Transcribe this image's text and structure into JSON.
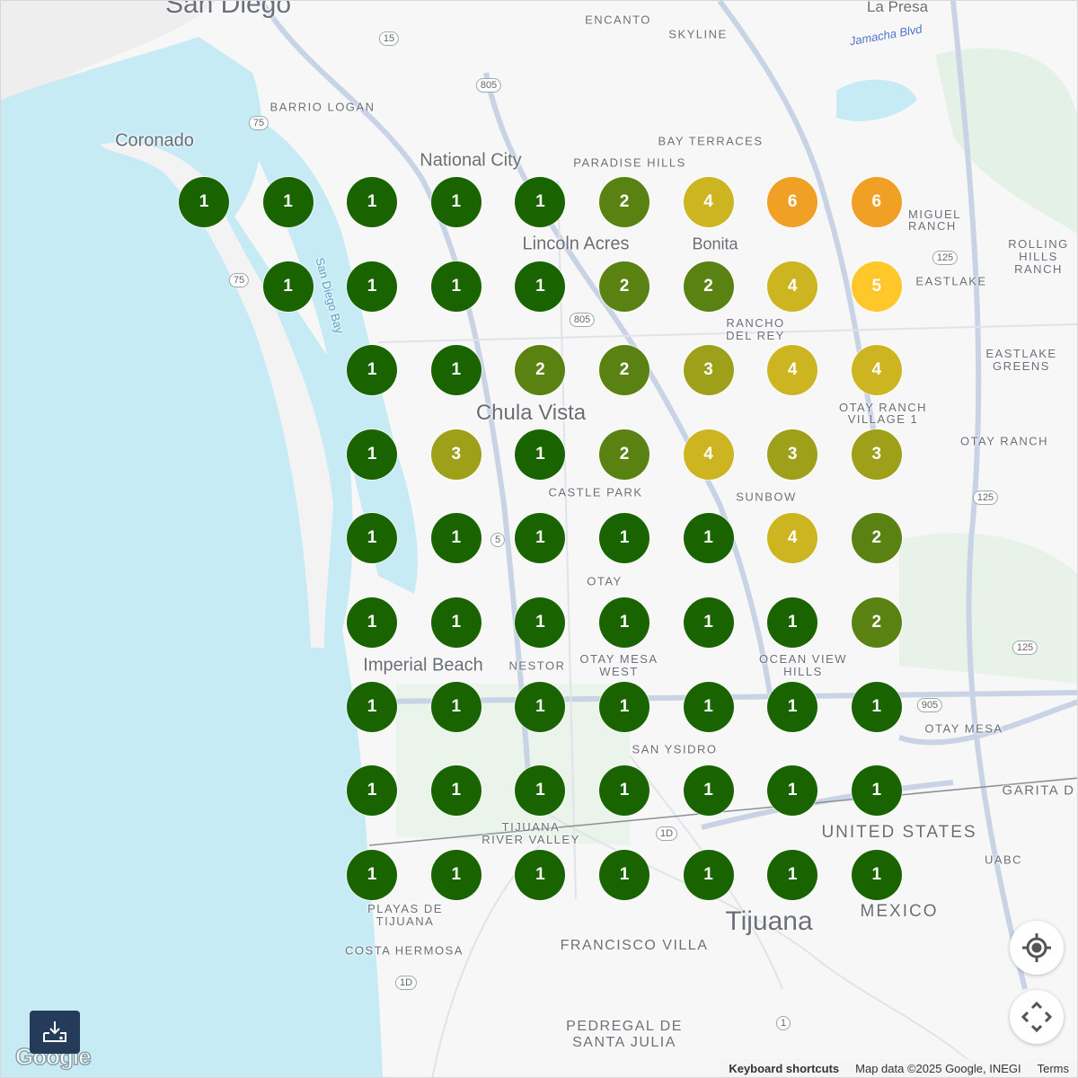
{
  "map": {
    "labels": {
      "san_diego": "San Diego",
      "la_presa": "La Presa",
      "encanto": "ENCANTO",
      "skyline": "SKYLINE",
      "jamacha_blvd": "Jamacha Blvd",
      "barrio_logan": "BARRIO LOGAN",
      "coronado": "Coronado",
      "bay_terraces": "BAY TERRACES",
      "national_city": "National City",
      "paradise_hills": "PARADISE HILLS",
      "lincoln_acres": "Lincoln Acres",
      "miguel_ranch": "MIGUEL RANCH",
      "rolling_hills": "ROLLING HILLS RANCH",
      "eastlake": "EASTLAKE",
      "bonita": "Bonita",
      "rancho_del_rey": "RANCHO DEL REY",
      "san_diego_bay": "San Diego Bay",
      "chula_vista": "Chula Vista",
      "eastlake_greens": "EASTLAKE GREENS",
      "otay_ranch_village": "OTAY RANCH VILLAGE 1",
      "otay_ranch": "OTAY RANCH",
      "castle_park": "CASTLE PARK",
      "sunbow": "SUNBOW",
      "otay": "OTAY",
      "imperial_beach": "Imperial Beach",
      "otay_mesa_west": "OTAY MESA WEST",
      "ocean_view_hills": "OCEAN VIEW HILLS",
      "nestor": "NESTOR",
      "otay_mesa": "OTAY MESA",
      "san_ysidro": "SAN YSIDRO",
      "tijuana_river_valley": "TIJUANA RIVER VALLEY",
      "united_states": "UNITED STATES",
      "mexico": "MEXICO",
      "garita": "GARITA D",
      "uabc": "UABC",
      "tijuana": "Tijuana",
      "playas": "PLAYAS DE TIJUANA",
      "costa_hermosa": "COSTA HERMOSA",
      "francisco_villa": "FRANCISCO VILLA",
      "pedregal": "PEDREGAL DE SANTA JULIA"
    },
    "shields": [
      "15",
      "805",
      "75",
      "75",
      "805",
      "125",
      "125",
      "125",
      "905",
      "5",
      "1D",
      "1D",
      "1"
    ]
  },
  "grid": {
    "rows": [
      [
        1,
        1,
        1,
        1,
        1,
        2,
        4,
        6,
        6
      ],
      [
        null,
        1,
        1,
        1,
        1,
        2,
        2,
        4,
        5
      ],
      [
        null,
        null,
        1,
        1,
        2,
        2,
        3,
        4,
        4
      ],
      [
        null,
        null,
        1,
        3,
        1,
        2,
        4,
        3,
        3
      ],
      [
        null,
        null,
        1,
        1,
        1,
        1,
        1,
        4,
        2
      ],
      [
        null,
        null,
        1,
        1,
        1,
        1,
        1,
        1,
        2
      ],
      [
        null,
        null,
        1,
        1,
        1,
        1,
        1,
        1,
        1
      ],
      [
        null,
        null,
        1,
        1,
        1,
        1,
        1,
        1,
        1
      ],
      [
        null,
        null,
        1,
        1,
        1,
        1,
        1,
        1,
        1
      ]
    ],
    "colors": {
      "1": "#1a6400",
      "2": "#5a8212",
      "3": "#9ea01a",
      "4": "#cdb521",
      "5": "#ffc72a",
      "6": "#f0a024"
    }
  },
  "controls": {
    "my_location": "my-location",
    "pan": "pan",
    "download": "download"
  },
  "footer": {
    "logo": "Google",
    "keyboard_shortcuts": "Keyboard shortcuts",
    "map_data": "Map data ©2025 Google, INEGI",
    "terms": "Terms"
  }
}
